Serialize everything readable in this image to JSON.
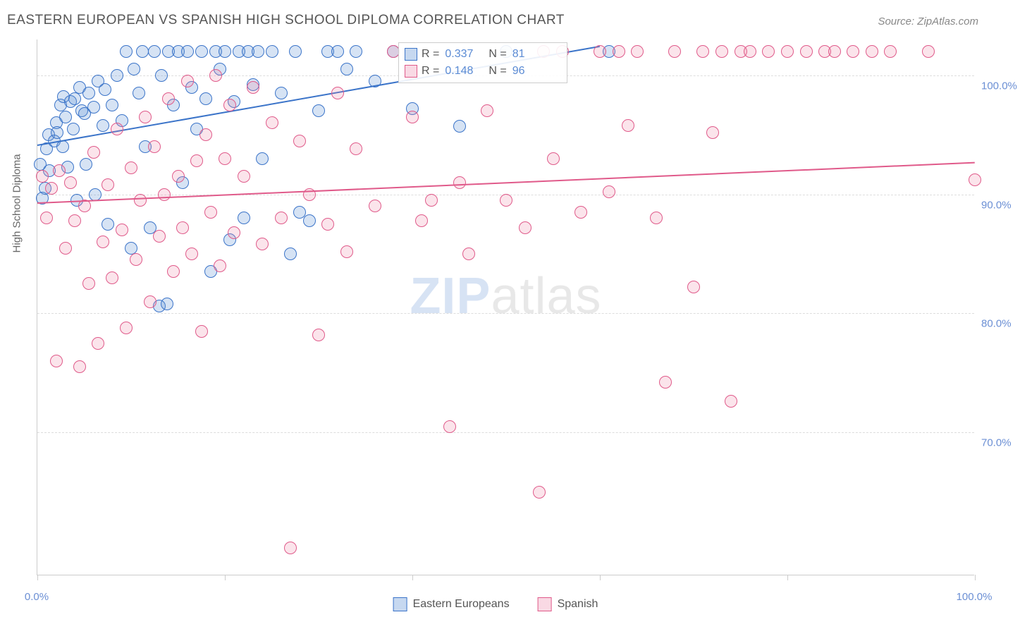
{
  "title": "EASTERN EUROPEAN VS SPANISH HIGH SCHOOL DIPLOMA CORRELATION CHART",
  "source": "Source: ZipAtlas.com",
  "ylabel": "High School Diploma",
  "watermark": {
    "zip": "ZIP",
    "atlas": "atlas"
  },
  "chart": {
    "type": "scatter",
    "xlim": [
      0,
      100
    ],
    "ylim": [
      58,
      103
    ],
    "yticks": [
      70,
      80,
      90,
      100
    ],
    "ytick_labels": [
      "70.0%",
      "80.0%",
      "90.0%",
      "100.0%"
    ],
    "xtick_positions": [
      0,
      20,
      40,
      60,
      80,
      100
    ],
    "xtick_labels_shown": {
      "0": "0.0%",
      "100": "100.0%"
    },
    "background_color": "#ffffff",
    "grid_color": "#dddddd",
    "axis_color": "#cccccc",
    "marker_radius": 9,
    "marker_stroke_width": 1.5,
    "marker_fill_opacity": 0.25
  },
  "series": [
    {
      "name": "Eastern Europeans",
      "color_stroke": "#3b74c9",
      "color_fill": "rgba(93,143,212,0.25)",
      "R": "0.337",
      "N": "81",
      "trend": {
        "x1": 0,
        "y1": 94.2,
        "x2": 60,
        "y2": 102.5
      },
      "points": [
        [
          0.3,
          92.5
        ],
        [
          0.5,
          89.7
        ],
        [
          0.8,
          90.5
        ],
        [
          1.0,
          93.8
        ],
        [
          1.2,
          95.0
        ],
        [
          1.3,
          92.0
        ],
        [
          1.8,
          94.5
        ],
        [
          2.0,
          96.0
        ],
        [
          2.1,
          95.2
        ],
        [
          2.5,
          97.5
        ],
        [
          2.7,
          94.0
        ],
        [
          2.8,
          98.2
        ],
        [
          3.0,
          96.5
        ],
        [
          3.2,
          92.3
        ],
        [
          3.5,
          97.8
        ],
        [
          3.8,
          95.5
        ],
        [
          4.0,
          98.0
        ],
        [
          4.2,
          89.5
        ],
        [
          4.5,
          99.0
        ],
        [
          4.7,
          97.0
        ],
        [
          5.0,
          96.8
        ],
        [
          5.2,
          92.5
        ],
        [
          5.5,
          98.5
        ],
        [
          6.0,
          97.3
        ],
        [
          6.2,
          90.0
        ],
        [
          6.5,
          99.5
        ],
        [
          7.0,
          95.8
        ],
        [
          7.2,
          98.8
        ],
        [
          7.5,
          87.5
        ],
        [
          8.0,
          97.5
        ],
        [
          8.5,
          100.0
        ],
        [
          9.0,
          96.2
        ],
        [
          9.5,
          102.0
        ],
        [
          10.0,
          85.5
        ],
        [
          10.3,
          100.5
        ],
        [
          10.8,
          98.5
        ],
        [
          11.2,
          102.0
        ],
        [
          11.5,
          94.0
        ],
        [
          12.0,
          87.2
        ],
        [
          12.5,
          102.0
        ],
        [
          13.0,
          80.6
        ],
        [
          13.2,
          100.0
        ],
        [
          13.8,
          80.8
        ],
        [
          14.0,
          102.0
        ],
        [
          14.5,
          97.5
        ],
        [
          15.0,
          102.0
        ],
        [
          15.5,
          91.0
        ],
        [
          16.0,
          102.0
        ],
        [
          16.5,
          99.0
        ],
        [
          17.0,
          95.5
        ],
        [
          17.5,
          102.0
        ],
        [
          18.0,
          98.0
        ],
        [
          18.5,
          83.5
        ],
        [
          19.0,
          102.0
        ],
        [
          19.5,
          100.5
        ],
        [
          20.0,
          102.0
        ],
        [
          20.5,
          86.2
        ],
        [
          21.0,
          97.8
        ],
        [
          21.5,
          102.0
        ],
        [
          22.0,
          88.0
        ],
        [
          22.5,
          102.0
        ],
        [
          23.0,
          99.2
        ],
        [
          23.5,
          102.0
        ],
        [
          24.0,
          93.0
        ],
        [
          25.0,
          102.0
        ],
        [
          26.0,
          98.5
        ],
        [
          27.0,
          85.0
        ],
        [
          27.5,
          102.0
        ],
        [
          28.0,
          88.5
        ],
        [
          29.0,
          87.8
        ],
        [
          30.0,
          97.0
        ],
        [
          31.0,
          102.0
        ],
        [
          32.0,
          102.0
        ],
        [
          33.0,
          100.5
        ],
        [
          34.0,
          102.0
        ],
        [
          36.0,
          99.5
        ],
        [
          38.0,
          102.0
        ],
        [
          40.0,
          97.2
        ],
        [
          45.0,
          95.7
        ],
        [
          50.0,
          102.0
        ],
        [
          61.0,
          102.0
        ]
      ]
    },
    {
      "name": "Spanish",
      "color_stroke": "#e05a8a",
      "color_fill": "rgba(235,130,165,0.22)",
      "R": "0.148",
      "N": "96",
      "trend": {
        "x1": 0,
        "y1": 89.3,
        "x2": 100,
        "y2": 92.7
      },
      "points": [
        [
          0.5,
          91.5
        ],
        [
          1.0,
          88.0
        ],
        [
          1.5,
          90.5
        ],
        [
          2.0,
          76.0
        ],
        [
          2.3,
          92.0
        ],
        [
          3.0,
          85.5
        ],
        [
          3.5,
          91.0
        ],
        [
          4.0,
          87.8
        ],
        [
          4.5,
          75.5
        ],
        [
          5.0,
          89.0
        ],
        [
          5.5,
          82.5
        ],
        [
          6.0,
          93.5
        ],
        [
          6.5,
          77.5
        ],
        [
          7.0,
          86.0
        ],
        [
          7.5,
          90.8
        ],
        [
          8.0,
          83.0
        ],
        [
          8.5,
          95.5
        ],
        [
          9.0,
          87.0
        ],
        [
          9.5,
          78.8
        ],
        [
          10.0,
          92.2
        ],
        [
          10.5,
          84.5
        ],
        [
          11.0,
          89.5
        ],
        [
          11.5,
          96.5
        ],
        [
          12.0,
          81.0
        ],
        [
          12.5,
          94.0
        ],
        [
          13.0,
          86.5
        ],
        [
          13.5,
          90.0
        ],
        [
          14.0,
          98.0
        ],
        [
          14.5,
          83.5
        ],
        [
          15.0,
          91.5
        ],
        [
          15.5,
          87.2
        ],
        [
          16.0,
          99.5
        ],
        [
          16.5,
          85.0
        ],
        [
          17.0,
          92.8
        ],
        [
          17.5,
          78.5
        ],
        [
          18.0,
          95.0
        ],
        [
          18.5,
          88.5
        ],
        [
          19.0,
          100.0
        ],
        [
          19.5,
          84.0
        ],
        [
          20.0,
          93.0
        ],
        [
          20.5,
          97.5
        ],
        [
          21.0,
          86.8
        ],
        [
          22.0,
          91.5
        ],
        [
          23.0,
          99.0
        ],
        [
          24.0,
          85.8
        ],
        [
          25.0,
          96.0
        ],
        [
          26.0,
          88.0
        ],
        [
          27.0,
          60.3
        ],
        [
          28.0,
          94.5
        ],
        [
          29.0,
          90.0
        ],
        [
          30.0,
          78.2
        ],
        [
          31.0,
          87.5
        ],
        [
          32.0,
          98.5
        ],
        [
          33.0,
          85.2
        ],
        [
          34.0,
          93.8
        ],
        [
          36.0,
          89.0
        ],
        [
          38.0,
          102.0
        ],
        [
          40.0,
          96.5
        ],
        [
          41.0,
          87.8
        ],
        [
          42.0,
          89.5
        ],
        [
          44.0,
          70.5
        ],
        [
          45.0,
          91.0
        ],
        [
          46.0,
          85.0
        ],
        [
          48.0,
          97.0
        ],
        [
          50.0,
          89.5
        ],
        [
          52.0,
          87.2
        ],
        [
          53.5,
          65.0
        ],
        [
          54.0,
          102.0
        ],
        [
          55.0,
          93.0
        ],
        [
          56.0,
          102.0
        ],
        [
          58.0,
          88.5
        ],
        [
          60.0,
          102.0
        ],
        [
          61.0,
          90.2
        ],
        [
          62.0,
          102.0
        ],
        [
          63.0,
          95.8
        ],
        [
          64.0,
          102.0
        ],
        [
          66.0,
          88.0
        ],
        [
          67.0,
          74.2
        ],
        [
          68.0,
          102.0
        ],
        [
          70.0,
          82.2
        ],
        [
          71.0,
          102.0
        ],
        [
          72.0,
          95.2
        ],
        [
          73.0,
          102.0
        ],
        [
          74.0,
          72.6
        ],
        [
          75.0,
          102.0
        ],
        [
          76.0,
          102.0
        ],
        [
          78.0,
          102.0
        ],
        [
          80.0,
          102.0
        ],
        [
          82.0,
          102.0
        ],
        [
          84.0,
          102.0
        ],
        [
          85.0,
          102.0
        ],
        [
          87.0,
          102.0
        ],
        [
          89.0,
          102.0
        ],
        [
          91.0,
          102.0
        ],
        [
          95.0,
          102.0
        ],
        [
          100.0,
          91.2
        ]
      ]
    }
  ],
  "legend_box": {
    "rows": [
      {
        "swatch_stroke": "#3b74c9",
        "swatch_fill": "rgba(93,143,212,0.35)",
        "R_label": "R =",
        "R_val": "0.337",
        "N_label": "N =",
        "N_val": "81"
      },
      {
        "swatch_stroke": "#e05a8a",
        "swatch_fill": "rgba(235,130,165,0.3)",
        "R_label": "R =",
        "R_val": "0.148",
        "N_label": "N =",
        "N_val": "96"
      }
    ]
  },
  "bottom_legend": [
    {
      "swatch_stroke": "#3b74c9",
      "swatch_fill": "rgba(93,143,212,0.35)",
      "label": "Eastern Europeans"
    },
    {
      "swatch_stroke": "#e05a8a",
      "swatch_fill": "rgba(235,130,165,0.3)",
      "label": "Spanish"
    }
  ]
}
